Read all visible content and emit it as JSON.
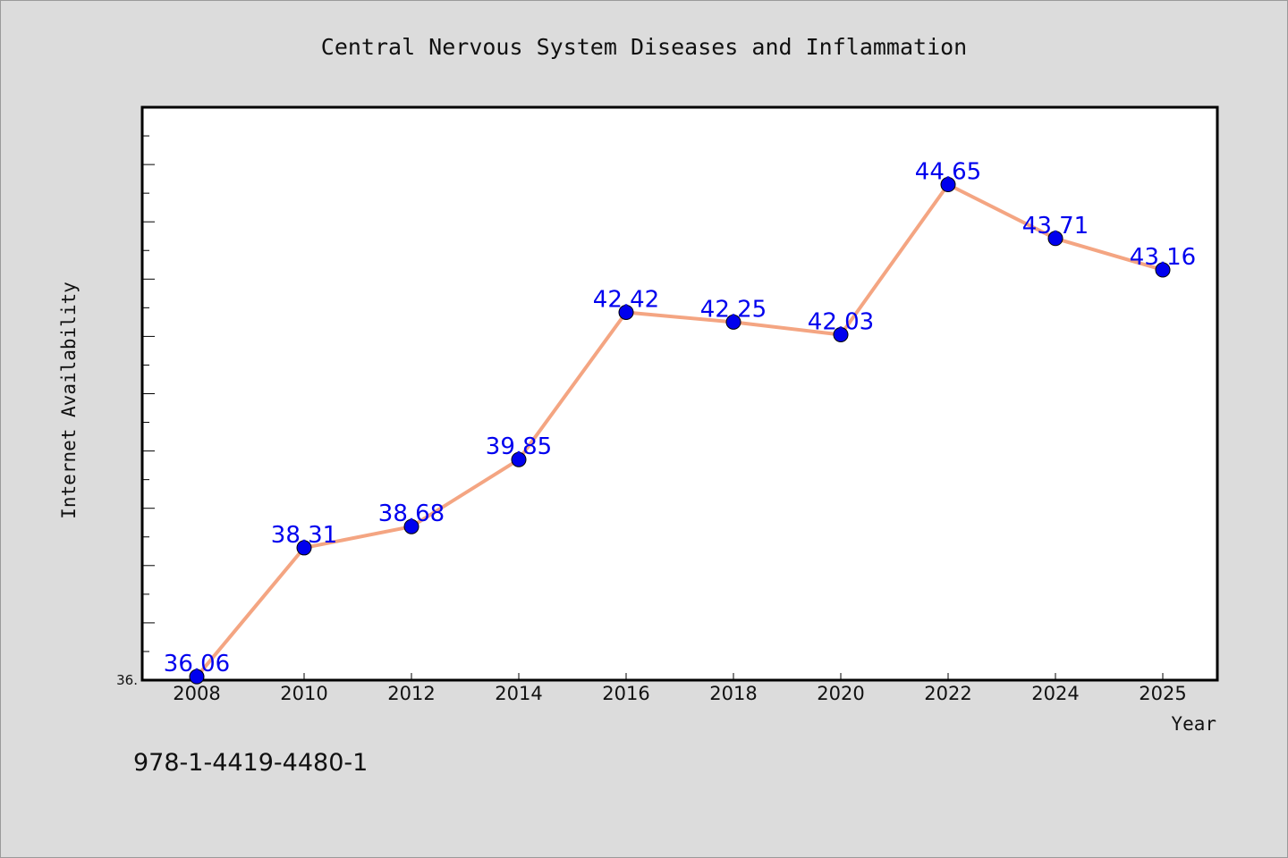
{
  "footer_text": "978-1-4419-4480-1",
  "chart_data": {
    "type": "line",
    "title": "Central Nervous System Diseases and Inflammation",
    "xlabel": "Year",
    "ylabel": "Internet Availability",
    "x": [
      "2008",
      "2010",
      "2012",
      "2014",
      "2016",
      "2018",
      "2020",
      "2022",
      "2024",
      "2025"
    ],
    "series": [
      {
        "values": [
          36.06,
          38.31,
          38.68,
          39.85,
          42.42,
          42.25,
          42.03,
          44.65,
          43.71,
          43.16
        ],
        "labels": [
          "36.06",
          "38.31",
          "38.68",
          "39.85",
          "42.42",
          "42.25",
          "42.03",
          "44.65",
          "43.71",
          "43.16"
        ]
      }
    ],
    "x_tick_labels": [
      "2008",
      "2010",
      "2012",
      "2014",
      "2016",
      "2018",
      "2020",
      "2022",
      "2024",
      "2025"
    ],
    "y_tick_labels": [
      "36."
    ],
    "ylim": [
      36.0,
      46.0
    ],
    "grid": false,
    "legend": "none",
    "colors": {
      "line": "#f4a582",
      "marker": "#0000ee",
      "labels": "#0000ee"
    }
  }
}
